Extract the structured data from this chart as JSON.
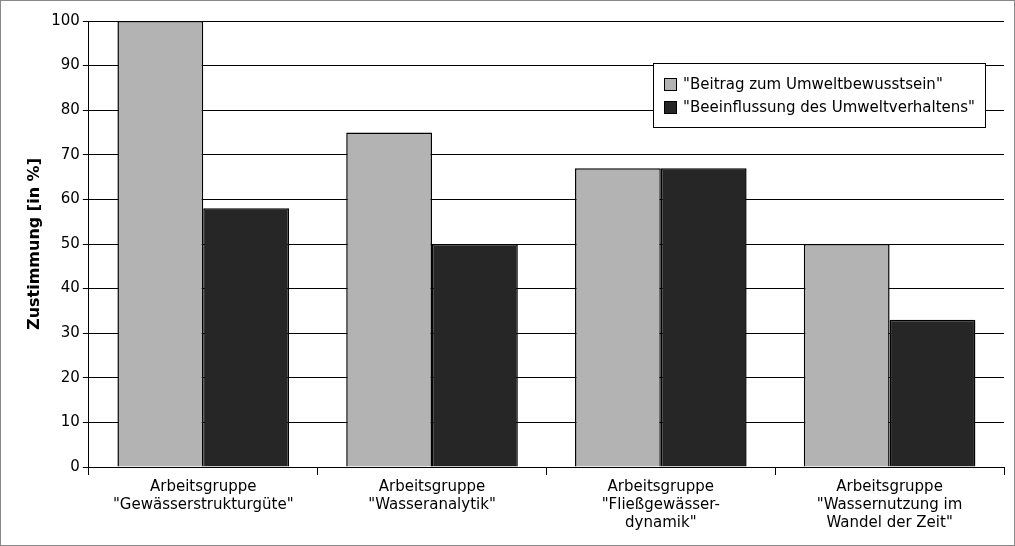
{
  "chart_data": {
    "type": "bar",
    "ylabel": "Zustimmung [in %]",
    "categories": [
      "Arbeitsgruppe\n\"Gewässerstrukturgüte\"",
      "Arbeitsgruppe\n\"Wasseranalytik\"",
      "Arbeitsgruppe\n\"Fließgewässer-\ndynamik\"",
      "Arbeitsgruppe\n\"Wassernutzung im\nWandel der Zeit\""
    ],
    "series": [
      {
        "name": "\"Beitrag zum Umweltbewusstsein\"",
        "color": "#b3b3b3",
        "values": [
          100,
          75,
          67,
          50
        ]
      },
      {
        "name": "\"Beeinflussung des Umweltverhaltens\"",
        "color": "#262626",
        "values": [
          58,
          50,
          67,
          33
        ]
      }
    ],
    "ylim": [
      0,
      100
    ],
    "yticks": [
      0,
      10,
      20,
      30,
      40,
      50,
      60,
      70,
      80,
      90,
      100
    ],
    "grid": "y",
    "legend": "top right"
  }
}
